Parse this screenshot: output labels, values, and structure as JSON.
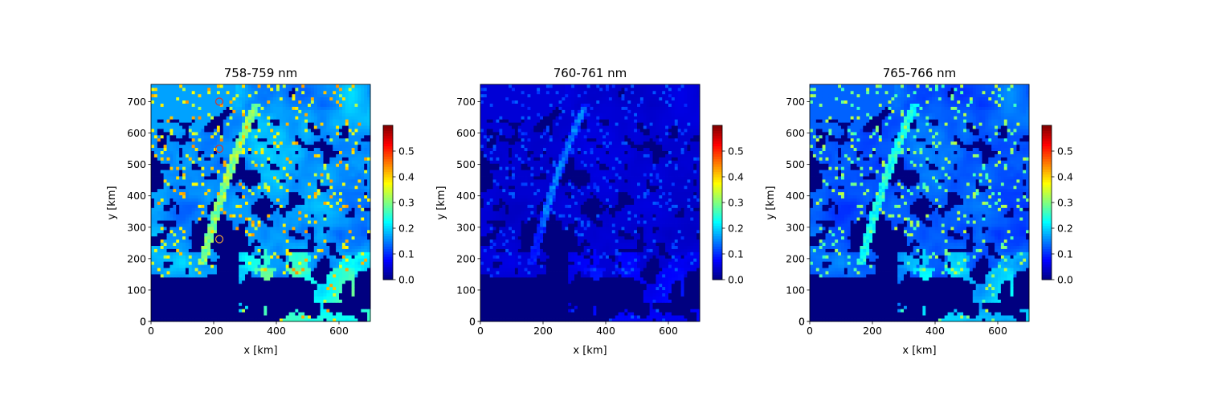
{
  "chart_data": [
    {
      "type": "heatmap",
      "title": "758-759 nm",
      "xlabel": "x [km]",
      "ylabel": "y [km]",
      "xlim": [
        0,
        700
      ],
      "ylim": [
        0,
        755
      ],
      "xticks": [
        0,
        200,
        400,
        600
      ],
      "yticks": [
        0,
        100,
        200,
        300,
        400,
        500,
        600,
        700
      ],
      "colorbar": {
        "range": [
          0,
          0.6
        ],
        "ticks": [
          0.0,
          0.1,
          0.2,
          0.3,
          0.4,
          0.5
        ],
        "tick_labels": [
          "0.0",
          "0.1",
          "0.2",
          "0.3",
          "0.4",
          "0.5"
        ],
        "colormap": "jet"
      },
      "intensity": "high",
      "markers": [
        {
          "x": 218,
          "y": 700,
          "color": "#d9362b"
        },
        {
          "x": 218,
          "y": 550,
          "color": "#d9362b"
        },
        {
          "x": 218,
          "y": 262,
          "color": "#e8a23a"
        }
      ]
    },
    {
      "type": "heatmap",
      "title": "760-761 nm",
      "xlabel": "x [km]",
      "ylabel": "y [km]",
      "xlim": [
        0,
        700
      ],
      "ylim": [
        0,
        755
      ],
      "xticks": [
        0,
        200,
        400,
        600
      ],
      "yticks": [
        0,
        100,
        200,
        300,
        400,
        500,
        600,
        700
      ],
      "colorbar": {
        "range": [
          0,
          0.6
        ],
        "ticks": [
          0.0,
          0.1,
          0.2,
          0.3,
          0.4,
          0.5
        ],
        "tick_labels": [
          "0.0",
          "0.1",
          "0.2",
          "0.3",
          "0.4",
          "0.5"
        ],
        "colormap": "jet"
      },
      "intensity": "low",
      "markers": []
    },
    {
      "type": "heatmap",
      "title": "765-766 nm",
      "xlabel": "x [km]",
      "ylabel": "y [km]",
      "xlim": [
        0,
        700
      ],
      "ylim": [
        0,
        755
      ],
      "xticks": [
        0,
        200,
        400,
        600
      ],
      "yticks": [
        0,
        100,
        200,
        300,
        400,
        500,
        600,
        700
      ],
      "colorbar": {
        "range": [
          0,
          0.6
        ],
        "ticks": [
          0.0,
          0.1,
          0.2,
          0.3,
          0.4,
          0.5
        ],
        "tick_labels": [
          "0.0",
          "0.1",
          "0.2",
          "0.3",
          "0.4",
          "0.5"
        ],
        "colormap": "jet"
      },
      "intensity": "medium",
      "markers": []
    }
  ]
}
